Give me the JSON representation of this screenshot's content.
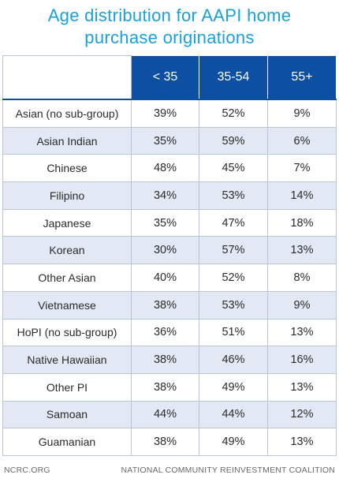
{
  "title_line1": "Age distribution for AAPI home",
  "title_line2": "purchase originations",
  "chart_data": {
    "type": "table",
    "columns": [
      "< 35",
      "35-54",
      "55+"
    ],
    "rows": [
      {
        "label": "Asian (no sub-group)",
        "values": [
          "39%",
          "52%",
          "9%"
        ]
      },
      {
        "label": "Asian Indian",
        "values": [
          "35%",
          "59%",
          "6%"
        ]
      },
      {
        "label": "Chinese",
        "values": [
          "48%",
          "45%",
          "7%"
        ]
      },
      {
        "label": "Filipino",
        "values": [
          "34%",
          "53%",
          "14%"
        ]
      },
      {
        "label": "Japanese",
        "values": [
          "35%",
          "47%",
          "18%"
        ]
      },
      {
        "label": "Korean",
        "values": [
          "30%",
          "57%",
          "13%"
        ]
      },
      {
        "label": "Other Asian",
        "values": [
          "40%",
          "52%",
          "8%"
        ]
      },
      {
        "label": "Vietnamese",
        "values": [
          "38%",
          "53%",
          "9%"
        ]
      },
      {
        "label": "HoPI (no sub-group)",
        "values": [
          "36%",
          "51%",
          "13%"
        ]
      },
      {
        "label": "Native Hawaiian",
        "values": [
          "38%",
          "46%",
          "16%"
        ]
      },
      {
        "label": "Other PI",
        "values": [
          "38%",
          "49%",
          "13%"
        ]
      },
      {
        "label": "Samoan",
        "values": [
          "44%",
          "44%",
          "12%"
        ]
      },
      {
        "label": "Guamanian",
        "values": [
          "38%",
          "49%",
          "13%"
        ]
      }
    ]
  },
  "footer": {
    "left": "NCRC.ORG",
    "right": "NATIONAL COMMUNITY REINVESTMENT COALITION"
  },
  "colors": {
    "title": "#1aa0dc",
    "header_bg": "#0d4fa3",
    "shaded_row": "#e2e8f4",
    "border": "#b8c6d6"
  }
}
